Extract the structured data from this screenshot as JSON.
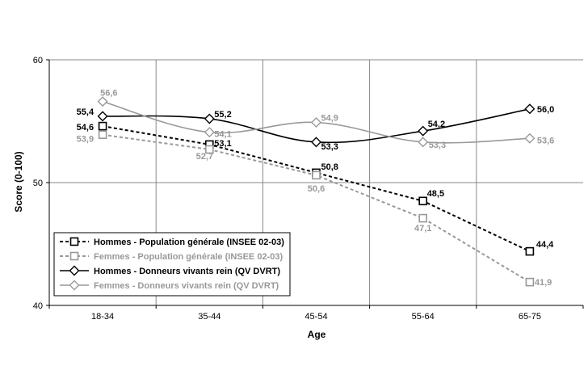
{
  "chart_data": {
    "type": "line",
    "categories": [
      "18-34",
      "35-44",
      "45-54",
      "55-64",
      "65-75"
    ],
    "xlabel": "Age",
    "ylabel": "Score (0-100)",
    "ylim": [
      40,
      60
    ],
    "yticks": [
      40,
      50,
      60
    ],
    "grid": true,
    "legend_position": "bottom-left",
    "series": [
      {
        "name": "Hommes - Population générale (INSEE 02-03)",
        "values": [
          54.6,
          53.1,
          50.8,
          48.5,
          44.4
        ],
        "labels": [
          "54,6",
          "53,1",
          "50,8",
          "48,5",
          "44,4"
        ],
        "color": "#000000",
        "dash": true,
        "marker": "square"
      },
      {
        "name": "Femmes - Population générale (INSEE 02-03)",
        "values": [
          53.9,
          52.7,
          50.6,
          47.1,
          41.9
        ],
        "labels": [
          "53,9",
          "52,7",
          "50,6",
          "47,1",
          "41,9"
        ],
        "color": "#999999",
        "dash": true,
        "marker": "square"
      },
      {
        "name": "Hommes - Donneurs vivants rein (QV DVRT)",
        "values": [
          55.4,
          55.2,
          53.3,
          54.2,
          56.0
        ],
        "labels": [
          "55,4",
          "55,2",
          "53,3",
          "54,2",
          "56,0"
        ],
        "color": "#000000",
        "dash": false,
        "marker": "diamond"
      },
      {
        "name": "Femmes - Donneurs vivants rein (QV DVRT)",
        "values": [
          56.6,
          54.1,
          54.9,
          53.3,
          53.6
        ],
        "labels": [
          "56,6",
          "54,1",
          "54,9",
          "53,3",
          "53,6"
        ],
        "color": "#999999",
        "dash": false,
        "marker": "diamond"
      }
    ]
  }
}
